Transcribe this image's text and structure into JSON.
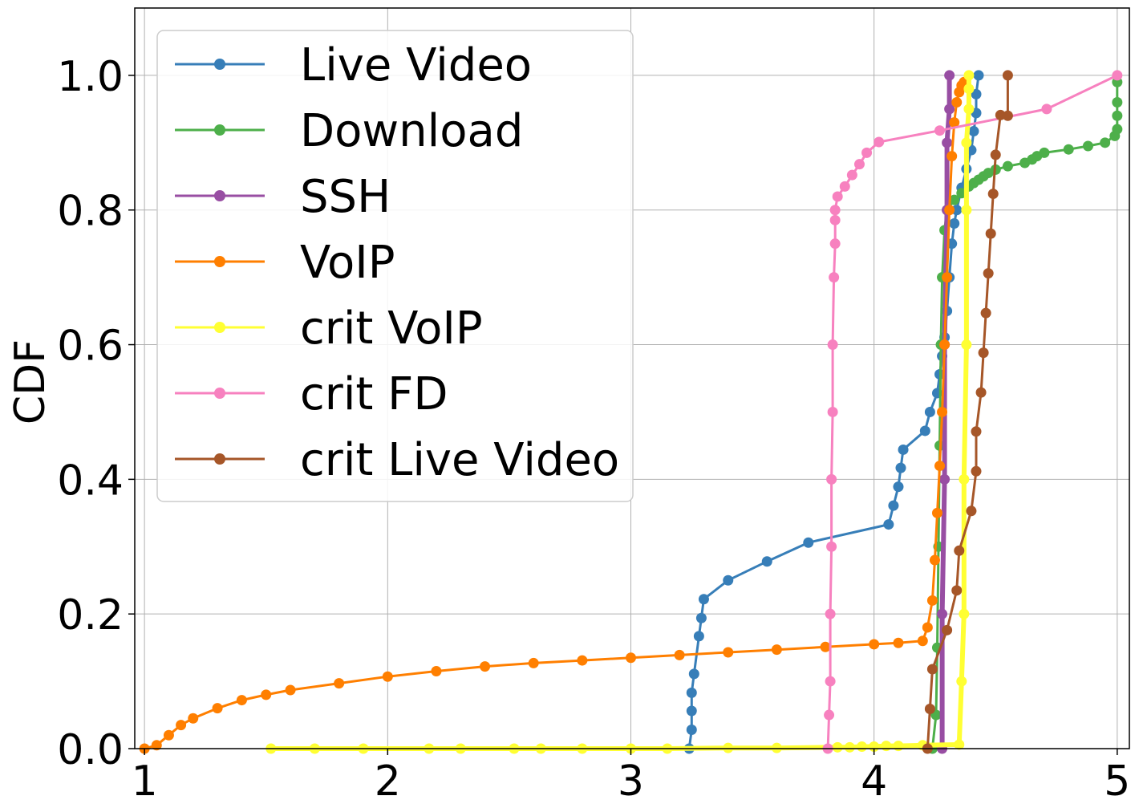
{
  "chart_data": {
    "type": "line",
    "title": "",
    "xlabel": "",
    "ylabel": "CDF",
    "xlim": [
      0.96,
      5.05
    ],
    "ylim": [
      0.0,
      1.1
    ],
    "xticks": [
      1,
      2,
      3,
      4,
      5
    ],
    "xtick_labels": [
      "1",
      "2",
      "3",
      "4",
      "5"
    ],
    "yticks": [
      0.0,
      0.2,
      0.4,
      0.6,
      0.8,
      1.0
    ],
    "ytick_labels": [
      "0.0",
      "0.2",
      "0.4",
      "0.6",
      "0.8",
      "1.0"
    ],
    "grid": true,
    "legend_position": "top-left",
    "series": [
      {
        "name": "Live Video",
        "color": "#377eb8",
        "x": [
          3.24,
          3.25,
          3.25,
          3.25,
          3.26,
          3.28,
          3.29,
          3.3,
          3.4,
          3.56,
          3.73,
          4.06,
          4.08,
          4.1,
          4.11,
          4.12,
          4.21,
          4.23,
          4.26,
          4.27,
          4.28,
          4.29,
          4.3,
          4.31,
          4.32,
          4.33,
          4.34,
          4.36,
          4.38,
          4.4,
          4.41,
          4.42,
          4.42,
          4.43
        ],
        "y": [
          0.0,
          0.028,
          0.056,
          0.083,
          0.111,
          0.167,
          0.194,
          0.222,
          0.25,
          0.278,
          0.306,
          0.333,
          0.361,
          0.389,
          0.417,
          0.444,
          0.472,
          0.5,
          0.528,
          0.556,
          0.583,
          0.611,
          0.65,
          0.7,
          0.75,
          0.78,
          0.8,
          0.833,
          0.861,
          0.889,
          0.917,
          0.944,
          0.972,
          1.0
        ]
      },
      {
        "name": "Download",
        "color": "#4daf4a",
        "x": [
          4.24,
          4.255,
          4.26,
          4.265,
          4.27,
          4.275,
          4.28,
          4.29,
          4.3,
          4.33,
          4.36,
          4.39,
          4.41,
          4.43,
          4.45,
          4.47,
          4.5,
          4.55,
          4.62,
          4.65,
          4.67,
          4.7,
          4.8,
          4.88,
          4.95,
          4.99,
          5.0,
          5.0,
          5.0,
          5.0
        ],
        "y": [
          0.0,
          0.05,
          0.15,
          0.3,
          0.45,
          0.6,
          0.7,
          0.77,
          0.8,
          0.815,
          0.825,
          0.835,
          0.84,
          0.845,
          0.85,
          0.855,
          0.86,
          0.865,
          0.87,
          0.875,
          0.88,
          0.885,
          0.89,
          0.895,
          0.9,
          0.91,
          0.92,
          0.94,
          0.96,
          0.99
        ]
      },
      {
        "name": "SSH",
        "color": "#984ea3",
        "x": [
          4.28,
          4.28,
          4.29,
          4.29,
          4.3,
          4.3,
          4.31,
          4.31
        ],
        "y": [
          0.0,
          0.2,
          0.4,
          0.6,
          0.8,
          0.9,
          0.95,
          1.0
        ]
      },
      {
        "name": "VoIP",
        "color": "#ff7f00",
        "x": [
          1.0,
          1.05,
          1.1,
          1.15,
          1.2,
          1.3,
          1.4,
          1.5,
          1.6,
          1.8,
          2.0,
          2.2,
          2.4,
          2.6,
          2.8,
          3.0,
          3.2,
          3.4,
          3.6,
          3.8,
          4.0,
          4.1,
          4.2,
          4.22,
          4.24,
          4.25,
          4.26,
          4.27,
          4.28,
          4.29,
          4.3,
          4.31,
          4.32,
          4.33,
          4.34,
          4.35,
          4.36,
          4.37
        ],
        "y": [
          0.0,
          0.005,
          0.02,
          0.035,
          0.045,
          0.06,
          0.072,
          0.08,
          0.087,
          0.097,
          0.107,
          0.115,
          0.122,
          0.127,
          0.131,
          0.135,
          0.139,
          0.143,
          0.147,
          0.151,
          0.155,
          0.157,
          0.16,
          0.18,
          0.22,
          0.28,
          0.35,
          0.42,
          0.5,
          0.6,
          0.7,
          0.8,
          0.88,
          0.93,
          0.96,
          0.975,
          0.985,
          0.99
        ]
      },
      {
        "name": "crit VoIP",
        "color": "#ffff33",
        "x": [
          1.52,
          1.7,
          1.9,
          2.17,
          2.3,
          2.52,
          2.63,
          2.8,
          3.0,
          3.15,
          3.4,
          3.6,
          3.85,
          3.9,
          3.95,
          4.0,
          4.05,
          4.1,
          4.2,
          4.35,
          4.36,
          4.37,
          4.37,
          4.38,
          4.38,
          4.38,
          4.39,
          4.39,
          4.39
        ],
        "y": [
          0.0,
          0.0,
          0.0,
          0.0,
          0.0,
          0.0,
          0.0,
          0.0,
          0.0,
          0.0,
          0.001,
          0.001,
          0.002,
          0.002,
          0.003,
          0.003,
          0.004,
          0.004,
          0.005,
          0.006,
          0.1,
          0.2,
          0.4,
          0.6,
          0.8,
          0.9,
          0.95,
          0.98,
          1.0
        ]
      },
      {
        "name": "crit FD",
        "color": "#f781bf",
        "x": [
          3.81,
          3.815,
          3.82,
          3.82,
          3.825,
          3.825,
          3.83,
          3.83,
          3.835,
          3.84,
          3.84,
          3.84,
          3.85,
          3.88,
          3.91,
          3.94,
          3.97,
          4.02,
          4.27,
          4.71,
          5.0
        ],
        "y": [
          0.0,
          0.05,
          0.1,
          0.2,
          0.3,
          0.4,
          0.5,
          0.6,
          0.7,
          0.75,
          0.785,
          0.8,
          0.82,
          0.835,
          0.852,
          0.868,
          0.885,
          0.901,
          0.918,
          0.95,
          1.0
        ]
      },
      {
        "name": "crit Live Video",
        "color": "#a65628",
        "x": [
          4.22,
          4.23,
          4.24,
          4.3,
          4.34,
          4.35,
          4.4,
          4.42,
          4.42,
          4.44,
          4.45,
          4.46,
          4.47,
          4.48,
          4.49,
          4.5,
          4.52,
          4.55,
          4.55
        ],
        "y": [
          0.0,
          0.059,
          0.118,
          0.176,
          0.235,
          0.294,
          0.353,
          0.412,
          0.471,
          0.529,
          0.588,
          0.647,
          0.706,
          0.765,
          0.824,
          0.882,
          0.941,
          0.94,
          1.0
        ]
      }
    ]
  }
}
